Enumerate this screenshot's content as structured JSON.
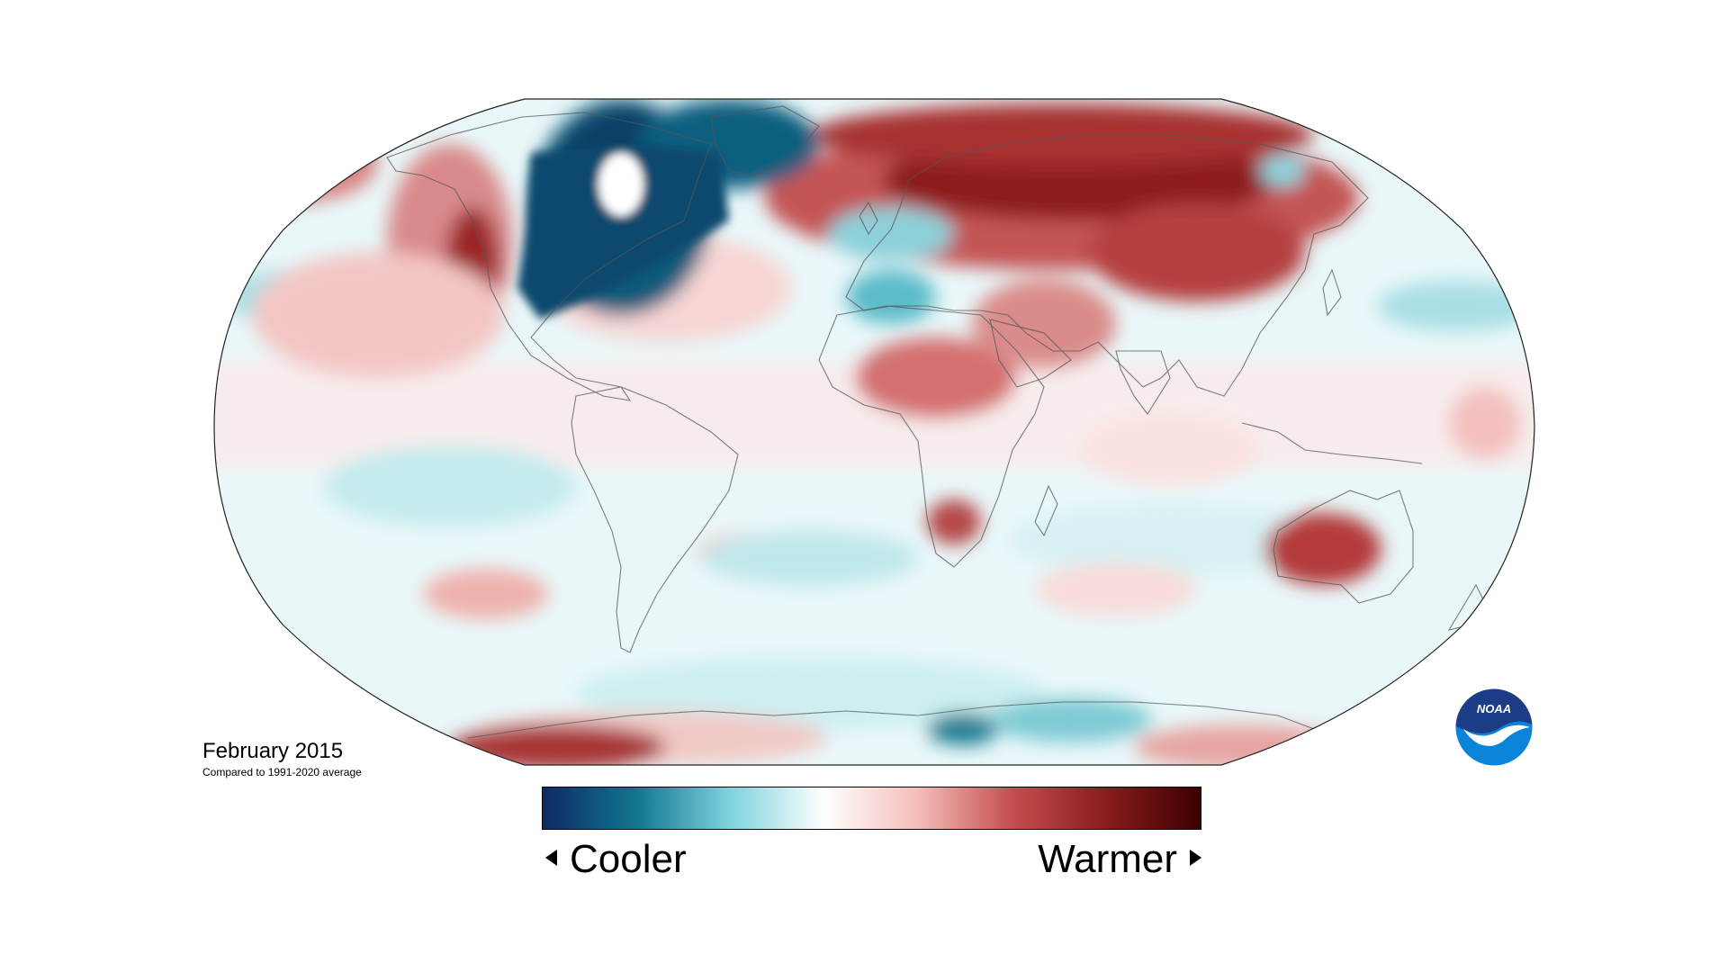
{
  "map": {
    "title": "February 2015",
    "subtitle": "Compared to 1991-2020 average",
    "projection": "robinson",
    "colors": {
      "cool_extreme": "#0d2e63",
      "cool": "#0e7d92",
      "neutral": "#ffffff",
      "warm": "#c44e4e",
      "warm_extreme": "#4a0000"
    }
  },
  "scale": {
    "cooler_label": "Cooler",
    "warmer_label": "Warmer",
    "gradient_stops": [
      "#0d2a63",
      "#127691",
      "#7fd3dd",
      "#ffffff",
      "#f4bcb8",
      "#c44e4e",
      "#8a1c1c",
      "#3d0000"
    ],
    "left_arrow_icon": "triangle-left-icon",
    "right_arrow_icon": "triangle-right-icon"
  },
  "logo": {
    "text": "NOAA",
    "icon": "noaa-logo-icon",
    "colors": {
      "top": "#1c3c86",
      "bottom": "#0a84d8",
      "bird": "#ffffff"
    }
  }
}
